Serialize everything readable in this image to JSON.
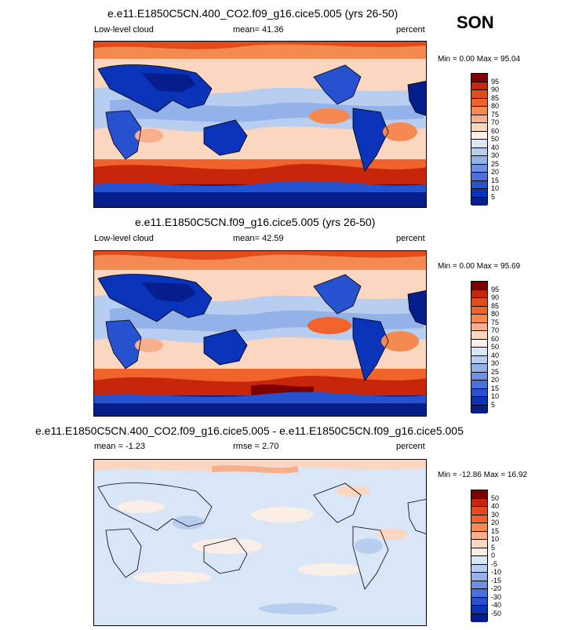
{
  "season": "SON",
  "units": "percent",
  "panels": [
    {
      "title": "e.e11.E1850C5CN.400_CO2.f09_g16.cice5.005 (yrs 26-50)",
      "left_label": "Low-level cloud",
      "center_label": "mean=  41.36",
      "right_label": "percent",
      "minmax": "Min =   0.00 Max =  95.04",
      "levels": [
        "95",
        "90",
        "85",
        "80",
        "75",
        "70",
        "60",
        "50",
        "40",
        "30",
        "25",
        "20",
        "15",
        "10",
        "5"
      ],
      "colors": [
        "#7f0000",
        "#c8260b",
        "#e34a1c",
        "#f0642c",
        "#f48a52",
        "#f8b08c",
        "#fbd6c1",
        "#fbeee6",
        "#d9e6f7",
        "#b8cef0",
        "#93b2ea",
        "#6e91e3",
        "#4a70db",
        "#2651cf",
        "#0933b8",
        "#061d8c"
      ]
    },
    {
      "title": "e.e11.E1850C5CN.f09_g16.cice5.005 (yrs 26-50)",
      "left_label": "Low-level cloud",
      "center_label": "mean=  42.59",
      "right_label": "percent",
      "minmax": "Min =   0.00 Max =  95.69",
      "levels": [
        "95",
        "90",
        "85",
        "80",
        "75",
        "70",
        "60",
        "50",
        "40",
        "30",
        "25",
        "20",
        "15",
        "10",
        "5"
      ],
      "colors": [
        "#7f0000",
        "#c8260b",
        "#e34a1c",
        "#f0642c",
        "#f48a52",
        "#f8b08c",
        "#fbd6c1",
        "#fbeee6",
        "#d9e6f7",
        "#b8cef0",
        "#93b2ea",
        "#6e91e3",
        "#4a70db",
        "#2651cf",
        "#0933b8",
        "#061d8c"
      ]
    },
    {
      "title": "e.e11.E1850C5CN.400_CO2.f09_g16.cice5.005 - e.e11.E1850C5CN.f09_g16.cice5.005",
      "left_label": "mean =  -1.23",
      "center_label": "rmse =   2.70",
      "right_label": "percent",
      "minmax": "Min = -12.86 Max =  16.92",
      "levels": [
        "50",
        "40",
        "30",
        "20",
        "15",
        "10",
        "5",
        "0",
        "-5",
        "-10",
        "-15",
        "-20",
        "-30",
        "-40",
        "-50"
      ],
      "colors": [
        "#7f0000",
        "#c8260b",
        "#e34a1c",
        "#f0642c",
        "#f48a52",
        "#f8b08c",
        "#fbd6c1",
        "#fbeee6",
        "#d9e6f7",
        "#b8cef0",
        "#93b2ea",
        "#6e91e3",
        "#4a70db",
        "#2651cf",
        "#0933b8",
        "#061d8c"
      ]
    }
  ]
}
